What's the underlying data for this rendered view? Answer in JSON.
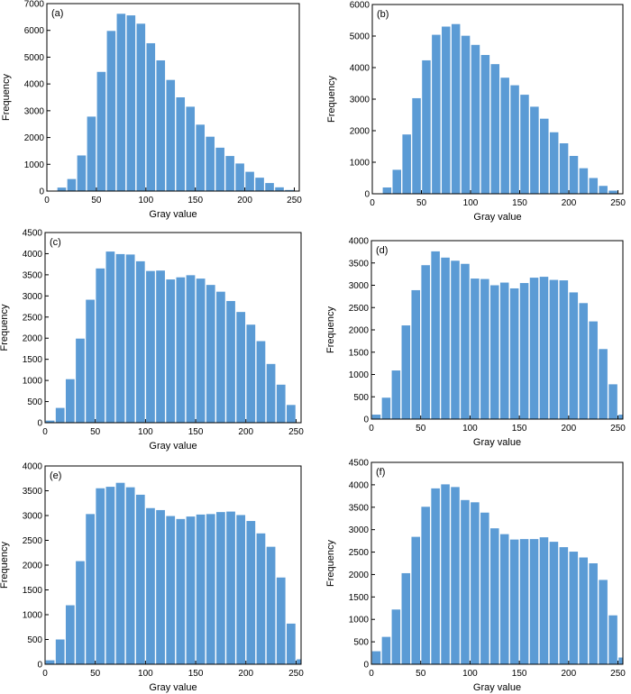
{
  "chart_data": [
    {
      "type": "bar",
      "panel_label": "(a)",
      "xlabel": "Gray value",
      "ylabel": "Frequency",
      "xlim": [
        0,
        255
      ],
      "ylim": [
        0,
        7000
      ],
      "xticks": [
        "0",
        "50",
        "100",
        "150",
        "200",
        "250"
      ],
      "yticks": [
        "0",
        "1000",
        "2000",
        "3000",
        "4000",
        "5000",
        "6000",
        "7000"
      ],
      "bar_color": "#5b9bd5",
      "bin_width": 10,
      "x": [
        5,
        15,
        25,
        35,
        45,
        55,
        65,
        75,
        85,
        95,
        105,
        115,
        125,
        135,
        145,
        155,
        165,
        175,
        185,
        195,
        205,
        215,
        225,
        235,
        245,
        255
      ],
      "values": [
        10,
        130,
        450,
        1330,
        2780,
        4450,
        5980,
        6620,
        6560,
        6250,
        5520,
        4880,
        4150,
        3500,
        3150,
        2480,
        2030,
        1620,
        1310,
        1030,
        720,
        500,
        300,
        140,
        40,
        0
      ]
    },
    {
      "type": "bar",
      "panel_label": "(b)",
      "xlabel": "Gray value",
      "ylabel": "Frequency",
      "xlim": [
        0,
        255
      ],
      "ylim": [
        0,
        6000
      ],
      "xticks": [
        "0",
        "50",
        "100",
        "150",
        "200",
        "250"
      ],
      "yticks": [
        "0",
        "1000",
        "2000",
        "3000",
        "4000",
        "5000",
        "6000"
      ],
      "bar_color": "#5b9bd5",
      "bin_width": 10,
      "x": [
        5,
        15,
        25,
        35,
        45,
        55,
        65,
        75,
        85,
        95,
        105,
        115,
        125,
        135,
        145,
        155,
        165,
        175,
        185,
        195,
        205,
        215,
        225,
        235,
        245,
        255
      ],
      "values": [
        10,
        200,
        760,
        1880,
        3030,
        4230,
        5040,
        5300,
        5380,
        5010,
        4720,
        4400,
        4110,
        3680,
        3440,
        3140,
        2760,
        2380,
        1950,
        1600,
        1200,
        810,
        500,
        250,
        100,
        0
      ]
    },
    {
      "type": "bar",
      "panel_label": "(c)",
      "xlabel": "Gray value",
      "ylabel": "Frequency",
      "xlim": [
        0,
        255
      ],
      "ylim": [
        0,
        4500
      ],
      "xticks": [
        "0",
        "50",
        "100",
        "150",
        "200",
        "250"
      ],
      "yticks": [
        "0",
        "500",
        "1000",
        "1500",
        "2000",
        "2500",
        "3000",
        "3500",
        "4000",
        "4500"
      ],
      "bar_color": "#5b9bd5",
      "bin_width": 10,
      "x": [
        5,
        15,
        25,
        35,
        45,
        55,
        65,
        75,
        85,
        95,
        105,
        115,
        125,
        135,
        145,
        155,
        165,
        175,
        185,
        195,
        205,
        215,
        225,
        235,
        245,
        255
      ],
      "values": [
        50,
        350,
        1030,
        1990,
        2910,
        3650,
        4050,
        3990,
        3980,
        3820,
        3590,
        3600,
        3390,
        3440,
        3490,
        3410,
        3260,
        3100,
        2880,
        2620,
        2320,
        1930,
        1390,
        900,
        420,
        0
      ]
    },
    {
      "type": "bar",
      "panel_label": "(d)",
      "xlabel": "Gray value",
      "ylabel": "Frequency",
      "xlim": [
        0,
        255
      ],
      "ylim": [
        0,
        4000
      ],
      "xticks": [
        "0",
        "50",
        "100",
        "150",
        "200",
        "250"
      ],
      "yticks": [
        "0",
        "500",
        "1000",
        "1500",
        "2000",
        "2500",
        "3000",
        "3500",
        "4000"
      ],
      "bar_color": "#5b9bd5",
      "bin_width": 10,
      "x": [
        5,
        15,
        25,
        35,
        45,
        55,
        65,
        75,
        85,
        95,
        105,
        115,
        125,
        135,
        145,
        155,
        165,
        175,
        185,
        195,
        205,
        215,
        225,
        235,
        245,
        255
      ],
      "values": [
        100,
        480,
        1090,
        2100,
        2890,
        3450,
        3760,
        3620,
        3550,
        3480,
        3150,
        3140,
        3000,
        3060,
        2930,
        3050,
        3170,
        3190,
        3120,
        3110,
        2840,
        2600,
        2190,
        1570,
        780,
        100
      ]
    },
    {
      "type": "bar",
      "panel_label": "(e)",
      "xlabel": "Gray value",
      "ylabel": "Frequency",
      "xlim": [
        0,
        255
      ],
      "ylim": [
        0,
        4000
      ],
      "xticks": [
        "0",
        "50",
        "100",
        "150",
        "200",
        "250"
      ],
      "yticks": [
        "0",
        "500",
        "1000",
        "1500",
        "2000",
        "2500",
        "3000",
        "3500",
        "4000"
      ],
      "bar_color": "#5b9bd5",
      "bin_width": 10,
      "x": [
        5,
        15,
        25,
        35,
        45,
        55,
        65,
        75,
        85,
        95,
        105,
        115,
        125,
        135,
        145,
        155,
        165,
        175,
        185,
        195,
        205,
        215,
        225,
        235,
        245,
        255
      ],
      "values": [
        80,
        500,
        1190,
        2080,
        3030,
        3550,
        3580,
        3660,
        3570,
        3420,
        3150,
        3110,
        2990,
        2930,
        2980,
        3020,
        3030,
        3070,
        3080,
        3010,
        2890,
        2640,
        2370,
        1750,
        820,
        100
      ]
    },
    {
      "type": "bar",
      "panel_label": "(f)",
      "xlabel": "Gray value",
      "ylabel": "Frequency",
      "xlim": [
        0,
        255
      ],
      "ylim": [
        0,
        4500
      ],
      "xticks": [
        "0",
        "50",
        "100",
        "150",
        "200",
        "250"
      ],
      "yticks": [
        "0",
        "500",
        "1000",
        "1500",
        "2000",
        "2500",
        "3000",
        "3500",
        "4000",
        "4500"
      ],
      "bar_color": "#5b9bd5",
      "bin_width": 10,
      "x": [
        5,
        15,
        25,
        35,
        45,
        55,
        65,
        75,
        85,
        95,
        105,
        115,
        125,
        135,
        145,
        155,
        165,
        175,
        185,
        195,
        205,
        215,
        225,
        235,
        245,
        255
      ],
      "values": [
        290,
        610,
        1220,
        2030,
        2840,
        3510,
        3920,
        4010,
        3950,
        3660,
        3610,
        3380,
        3030,
        2900,
        2780,
        2790,
        2790,
        2830,
        2730,
        2610,
        2510,
        2380,
        2250,
        1880,
        1090,
        150
      ]
    }
  ]
}
